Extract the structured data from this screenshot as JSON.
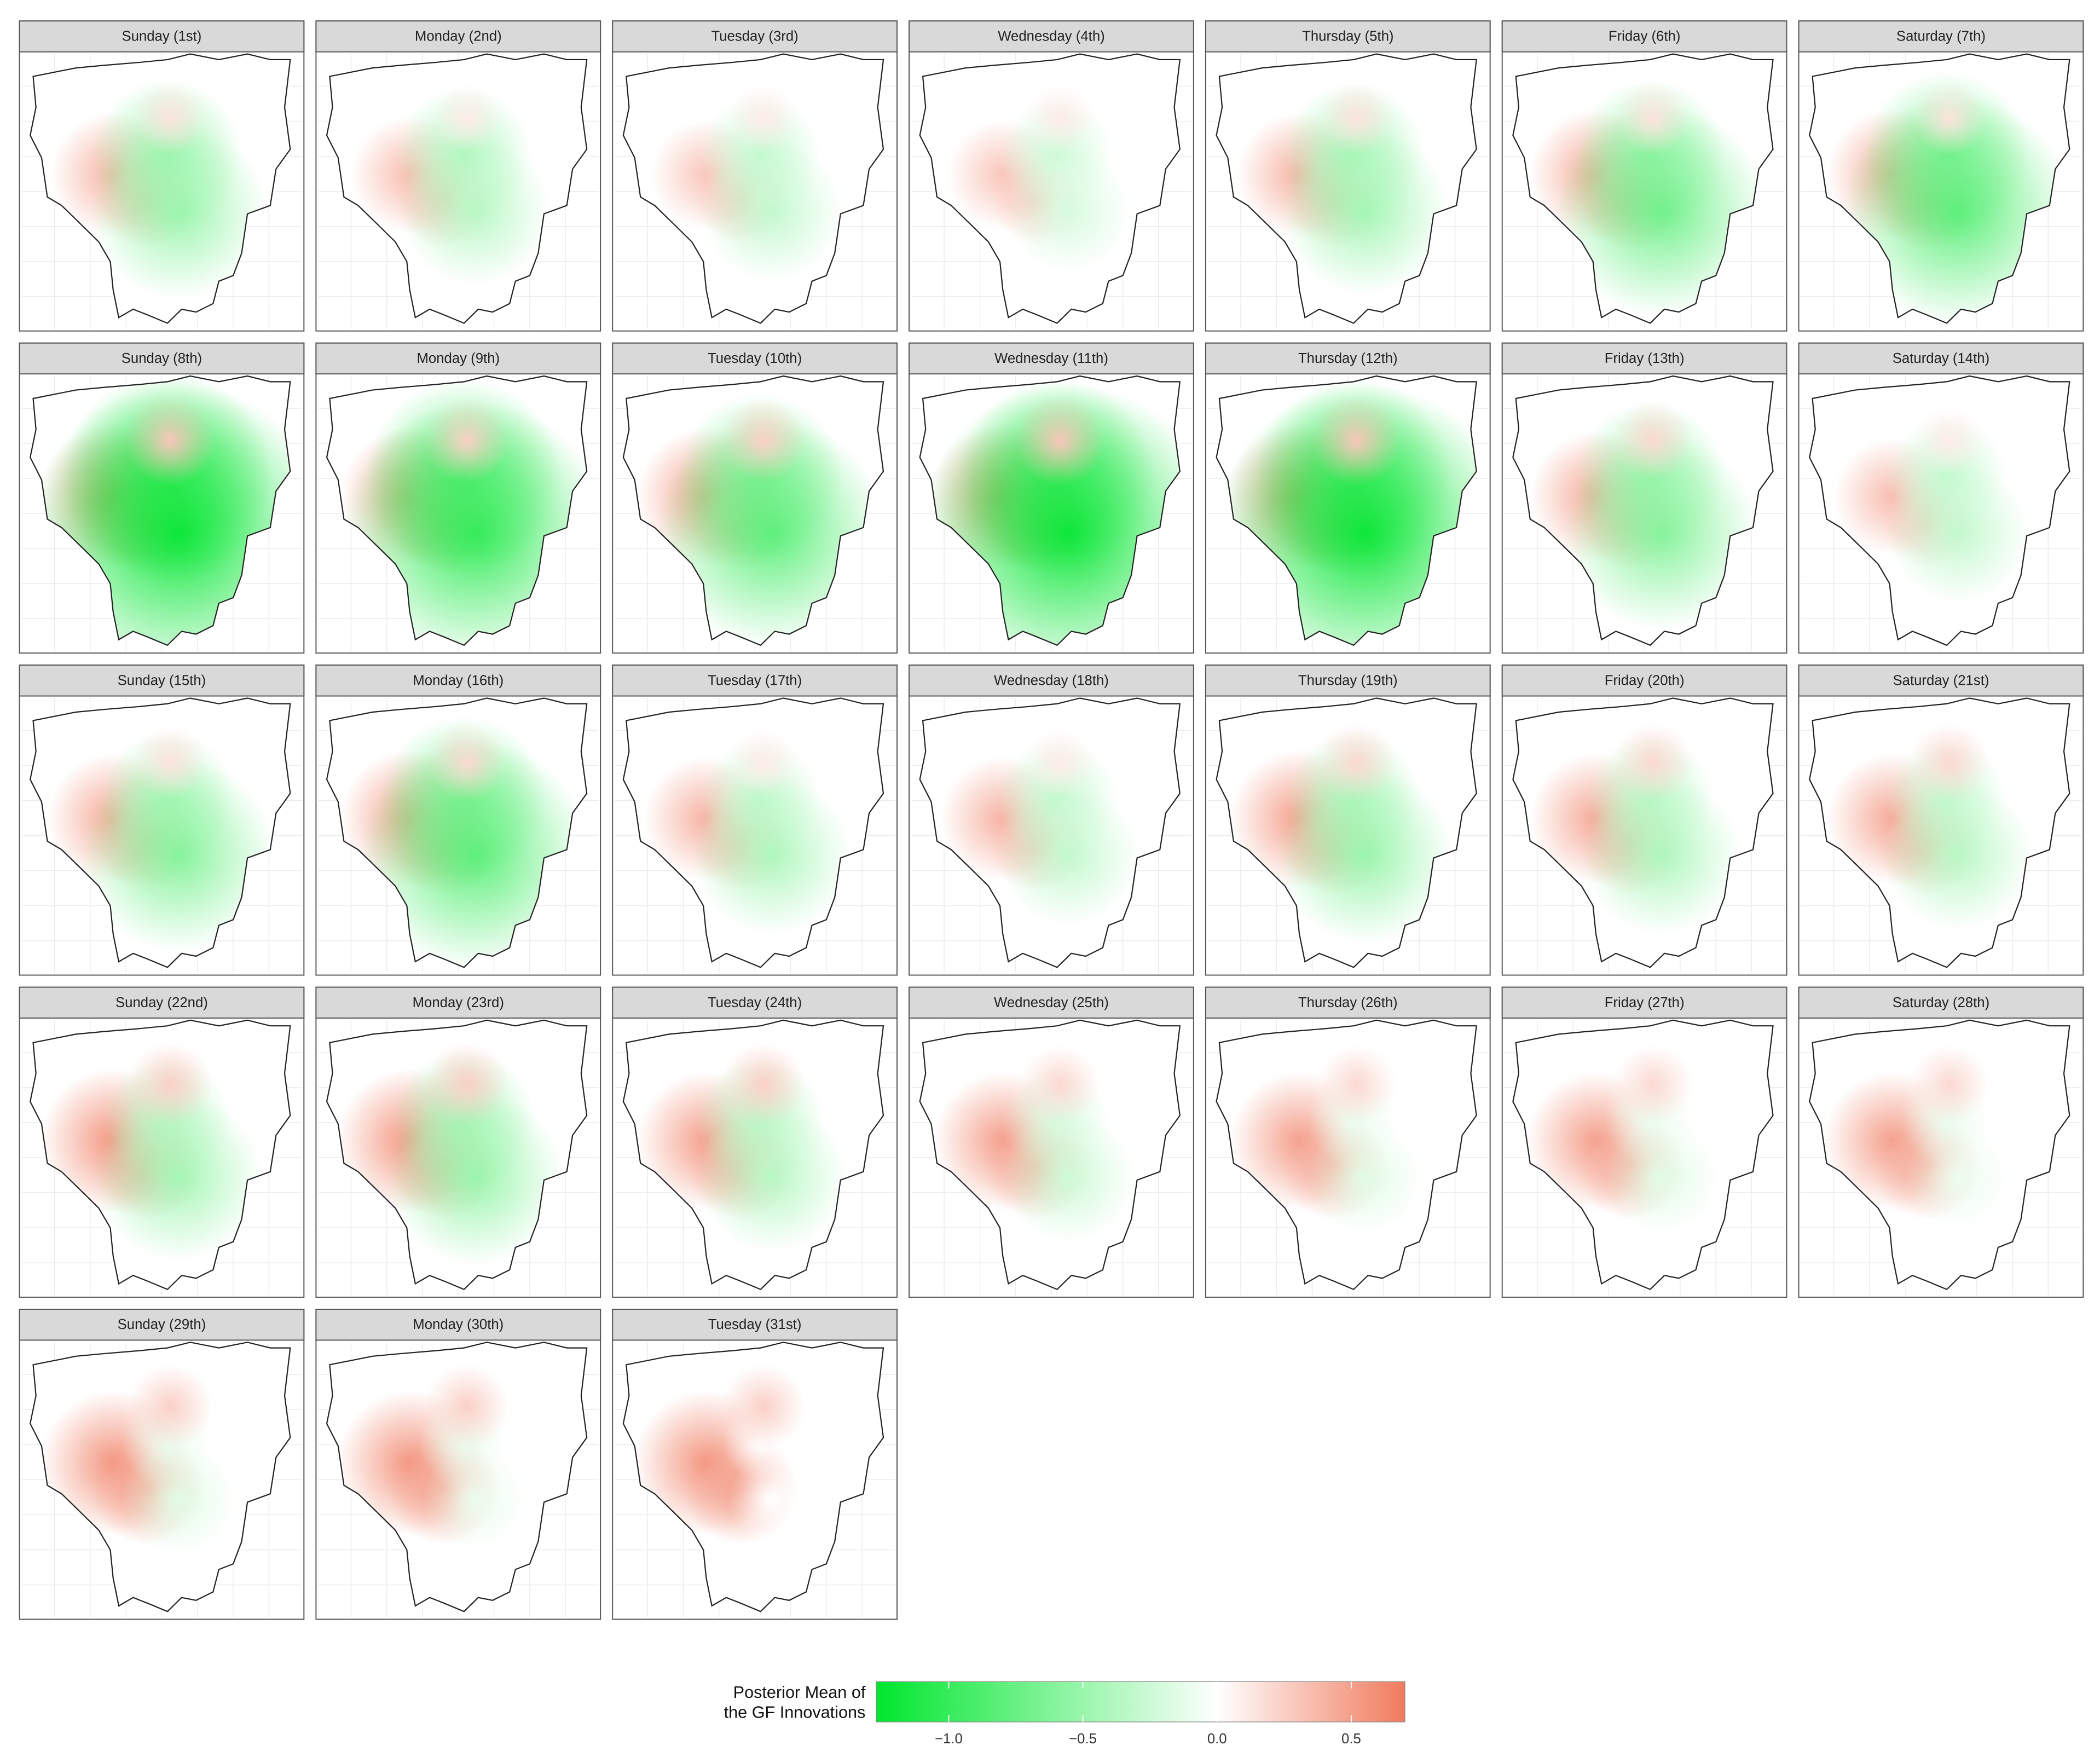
{
  "panels": [
    {
      "title": "Sunday (1st)",
      "values": [
        0.4,
        0.35,
        -0.5,
        -0.5,
        0.15
      ]
    },
    {
      "title": "Monday (2nd)",
      "values": [
        0.35,
        0.35,
        -0.4,
        -0.35,
        0.1
      ]
    },
    {
      "title": "Tuesday (3rd)",
      "values": [
        0.3,
        0.3,
        -0.3,
        -0.3,
        0.1
      ]
    },
    {
      "title": "Wednesday (4th)",
      "values": [
        0.3,
        0.3,
        -0.25,
        -0.2,
        0.1
      ]
    },
    {
      "title": "Thursday (5th)",
      "values": [
        0.4,
        0.35,
        -0.45,
        -0.45,
        0.15
      ]
    },
    {
      "title": "Friday (6th)",
      "values": [
        0.45,
        0.4,
        -0.5,
        -0.7,
        0.15
      ]
    },
    {
      "title": "Saturday (7th)",
      "values": [
        0.45,
        0.4,
        -0.6,
        -0.8,
        0.15
      ]
    },
    {
      "title": "Sunday (8th)",
      "values": [
        0.55,
        0.4,
        -0.9,
        -1.2,
        0.3
      ]
    },
    {
      "title": "Monday (9th)",
      "values": [
        0.5,
        0.4,
        -0.8,
        -1.0,
        0.25
      ]
    },
    {
      "title": "Tuesday (10th)",
      "values": [
        0.5,
        0.35,
        -0.6,
        -0.8,
        0.25
      ]
    },
    {
      "title": "Wednesday (11th)",
      "values": [
        0.55,
        0.4,
        -0.8,
        -1.2,
        0.3
      ]
    },
    {
      "title": "Thursday (12th)",
      "values": [
        0.55,
        0.4,
        -0.8,
        -1.2,
        0.3
      ]
    },
    {
      "title": "Friday (13th)",
      "values": [
        0.45,
        0.35,
        -0.5,
        -0.6,
        0.2
      ]
    },
    {
      "title": "Saturday (14th)",
      "values": [
        0.35,
        0.3,
        -0.3,
        -0.3,
        0.1
      ]
    },
    {
      "title": "Sunday (15th)",
      "values": [
        0.45,
        0.35,
        -0.4,
        -0.6,
        0.15
      ]
    },
    {
      "title": "Monday (16th)",
      "values": [
        0.5,
        0.4,
        -0.6,
        -0.8,
        0.2
      ]
    },
    {
      "title": "Tuesday (17th)",
      "values": [
        0.4,
        0.35,
        -0.3,
        -0.4,
        0.1
      ]
    },
    {
      "title": "Wednesday (18th)",
      "values": [
        0.4,
        0.35,
        -0.3,
        -0.3,
        0.1
      ]
    },
    {
      "title": "Thursday (19th)",
      "values": [
        0.5,
        0.4,
        -0.4,
        -0.5,
        0.2
      ]
    },
    {
      "title": "Friday (20th)",
      "values": [
        0.45,
        0.4,
        -0.35,
        -0.4,
        0.2
      ]
    },
    {
      "title": "Saturday (21st)",
      "values": [
        0.45,
        0.4,
        -0.3,
        -0.35,
        0.2
      ]
    },
    {
      "title": "Sunday (22nd)",
      "values": [
        0.55,
        0.45,
        -0.35,
        -0.45,
        0.25
      ]
    },
    {
      "title": "Monday (23rd)",
      "values": [
        0.55,
        0.45,
        -0.45,
        -0.5,
        0.25
      ]
    },
    {
      "title": "Tuesday (24th)",
      "values": [
        0.5,
        0.45,
        -0.35,
        -0.35,
        0.25
      ]
    },
    {
      "title": "Wednesday (25th)",
      "values": [
        0.5,
        0.45,
        -0.2,
        -0.25,
        0.2
      ]
    },
    {
      "title": "Thursday (26th)",
      "values": [
        0.5,
        0.45,
        -0.1,
        -0.15,
        0.2
      ]
    },
    {
      "title": "Friday (27th)",
      "values": [
        0.5,
        0.45,
        -0.1,
        -0.15,
        0.2
      ]
    },
    {
      "title": "Saturday (28th)",
      "values": [
        0.5,
        0.45,
        -0.1,
        -0.1,
        0.2
      ]
    },
    {
      "title": "Sunday (29th)",
      "values": [
        0.55,
        0.5,
        -0.1,
        -0.15,
        0.25
      ]
    },
    {
      "title": "Monday (30th)",
      "values": [
        0.55,
        0.5,
        -0.1,
        -0.1,
        0.25
      ]
    },
    {
      "title": "Tuesday (31st)",
      "values": [
        0.55,
        0.5,
        0.0,
        0.0,
        0.25
      ]
    }
  ],
  "legend": {
    "title": [
      "Posterior Mean of",
      "the GF Innovations"
    ],
    "lim": [
      -1.27,
      0.7
    ],
    "ticks": [
      {
        "value": -1.0,
        "label": "−1.0"
      },
      {
        "value": -0.5,
        "label": "−0.5"
      },
      {
        "value": 0.0,
        "label": "0.0"
      },
      {
        "value": 0.5,
        "label": "0.5"
      }
    ],
    "low": "#00e62e",
    "mid": "#ffffff",
    "high": "#f07a5e"
  }
}
